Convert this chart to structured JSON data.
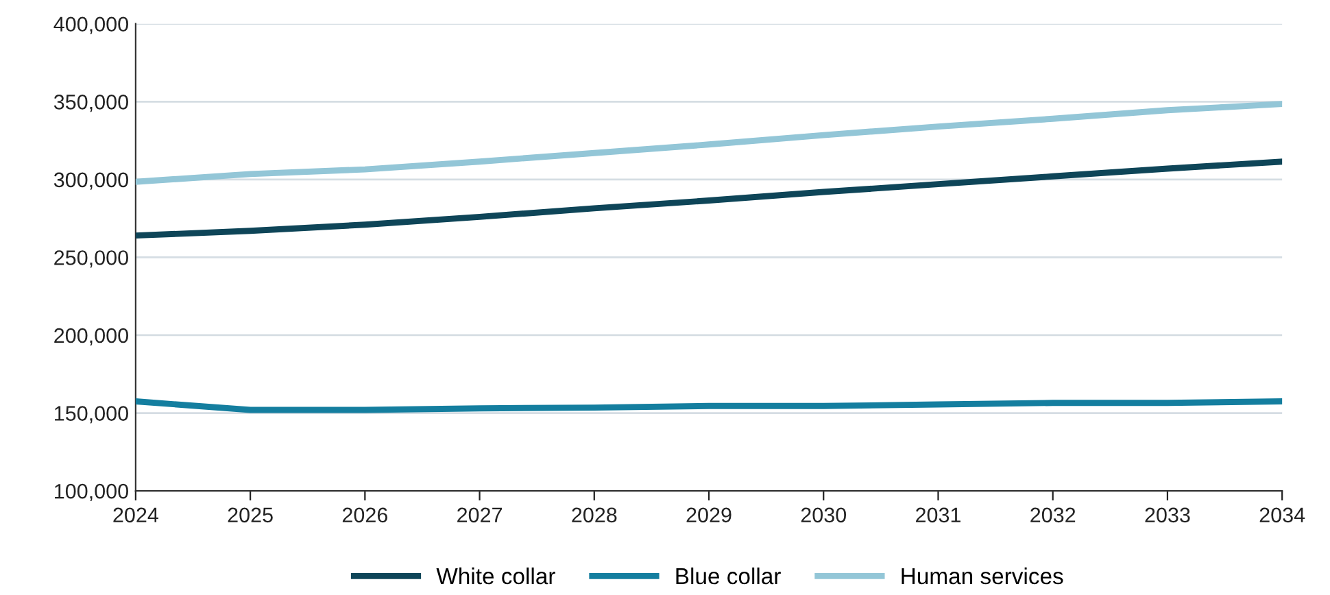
{
  "chart_data": {
    "type": "line",
    "x": [
      2024,
      2025,
      2026,
      2027,
      2028,
      2029,
      2030,
      2031,
      2032,
      2033,
      2034
    ],
    "series": [
      {
        "name": "White collar",
        "color": "#0e4558",
        "values": [
          264000,
          267000,
          271000,
          276000,
          281500,
          286500,
          292000,
          297000,
          302000,
          307000,
          311500
        ]
      },
      {
        "name": "Blue collar",
        "color": "#147e9f",
        "values": [
          157500,
          152000,
          152000,
          153000,
          153500,
          154500,
          154500,
          155500,
          156500,
          156500,
          157500
        ]
      },
      {
        "name": "Human services",
        "color": "#93c6d7",
        "values": [
          298500,
          303500,
          306500,
          311500,
          317000,
          322500,
          328500,
          334000,
          339000,
          344500,
          348500
        ]
      }
    ],
    "xlim": [
      2024,
      2034
    ],
    "xticks": [
      2024,
      2025,
      2026,
      2027,
      2028,
      2029,
      2030,
      2031,
      2032,
      2033,
      2034
    ],
    "ylim": [
      100000,
      400000
    ],
    "yticks": [
      {
        "value": 100000,
        "label": "100,000"
      },
      {
        "value": 150000,
        "label": "150,000"
      },
      {
        "value": 200000,
        "label": "200,000"
      },
      {
        "value": 250000,
        "label": "250,000"
      },
      {
        "value": 300000,
        "label": "300,000"
      },
      {
        "value": 350000,
        "label": "350,000"
      },
      {
        "value": 400000,
        "label": "400,000"
      }
    ],
    "grid": "y",
    "legend": "bottom",
    "marker": "none",
    "line_style": "solid"
  }
}
